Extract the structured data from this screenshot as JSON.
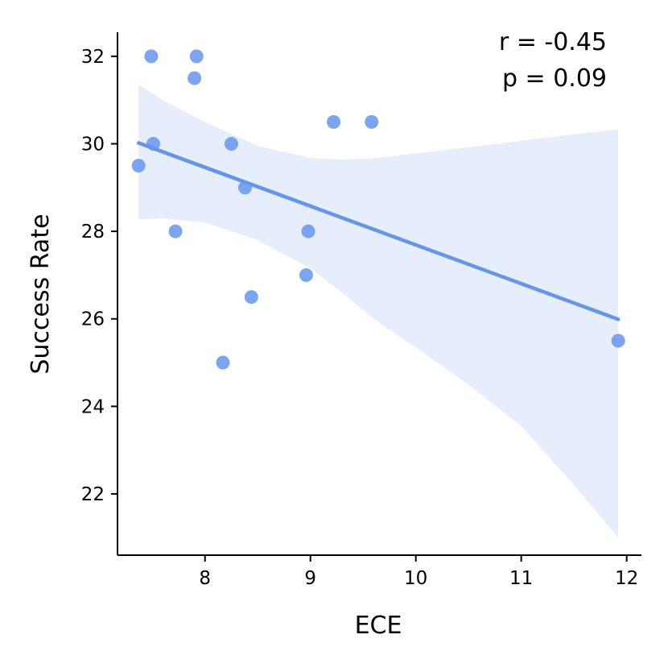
{
  "chart_data": {
    "type": "scatter",
    "xlabel": "ECE",
    "ylabel": "Success Rate",
    "xlim": [
      7.17,
      12.14
    ],
    "ylim": [
      20.6,
      32.55
    ],
    "xticks": [
      8,
      9,
      10,
      11,
      12
    ],
    "yticks": [
      22,
      24,
      26,
      28,
      30,
      32
    ],
    "points": [
      {
        "x": 7.37,
        "y": 29.5
      },
      {
        "x": 7.49,
        "y": 32.0
      },
      {
        "x": 7.51,
        "y": 30.0
      },
      {
        "x": 7.72,
        "y": 28.0
      },
      {
        "x": 7.9,
        "y": 31.5
      },
      {
        "x": 7.92,
        "y": 32.0
      },
      {
        "x": 8.17,
        "y": 25.0
      },
      {
        "x": 8.25,
        "y": 30.0
      },
      {
        "x": 8.38,
        "y": 29.0
      },
      {
        "x": 8.44,
        "y": 26.5
      },
      {
        "x": 8.96,
        "y": 27.0
      },
      {
        "x": 8.98,
        "y": 28.0
      },
      {
        "x": 9.22,
        "y": 30.5
      },
      {
        "x": 9.58,
        "y": 30.5
      },
      {
        "x": 11.92,
        "y": 25.5
      }
    ],
    "regression": {
      "x": [
        7.37,
        11.92
      ],
      "y": [
        30.02,
        25.99
      ]
    },
    "confidence_band": {
      "x": [
        7.37,
        7.6,
        8.0,
        8.5,
        9.0,
        9.3,
        9.6,
        10.0,
        10.5,
        11.0,
        11.5,
        11.92
      ],
      "upper": [
        31.35,
        31.0,
        30.5,
        29.95,
        29.68,
        29.64,
        29.67,
        29.78,
        29.92,
        30.07,
        30.22,
        30.33
      ],
      "lower": [
        28.27,
        28.3,
        28.2,
        27.8,
        27.15,
        26.6,
        26.0,
        25.35,
        24.5,
        23.55,
        22.2,
        21.0
      ]
    },
    "annotation": {
      "r": "r = -0.45",
      "p": "p = 0.09"
    },
    "colors": {
      "point": "#6495ED",
      "line": "#6495ED",
      "band": "#E6EDFB",
      "axis": "#000000"
    }
  }
}
